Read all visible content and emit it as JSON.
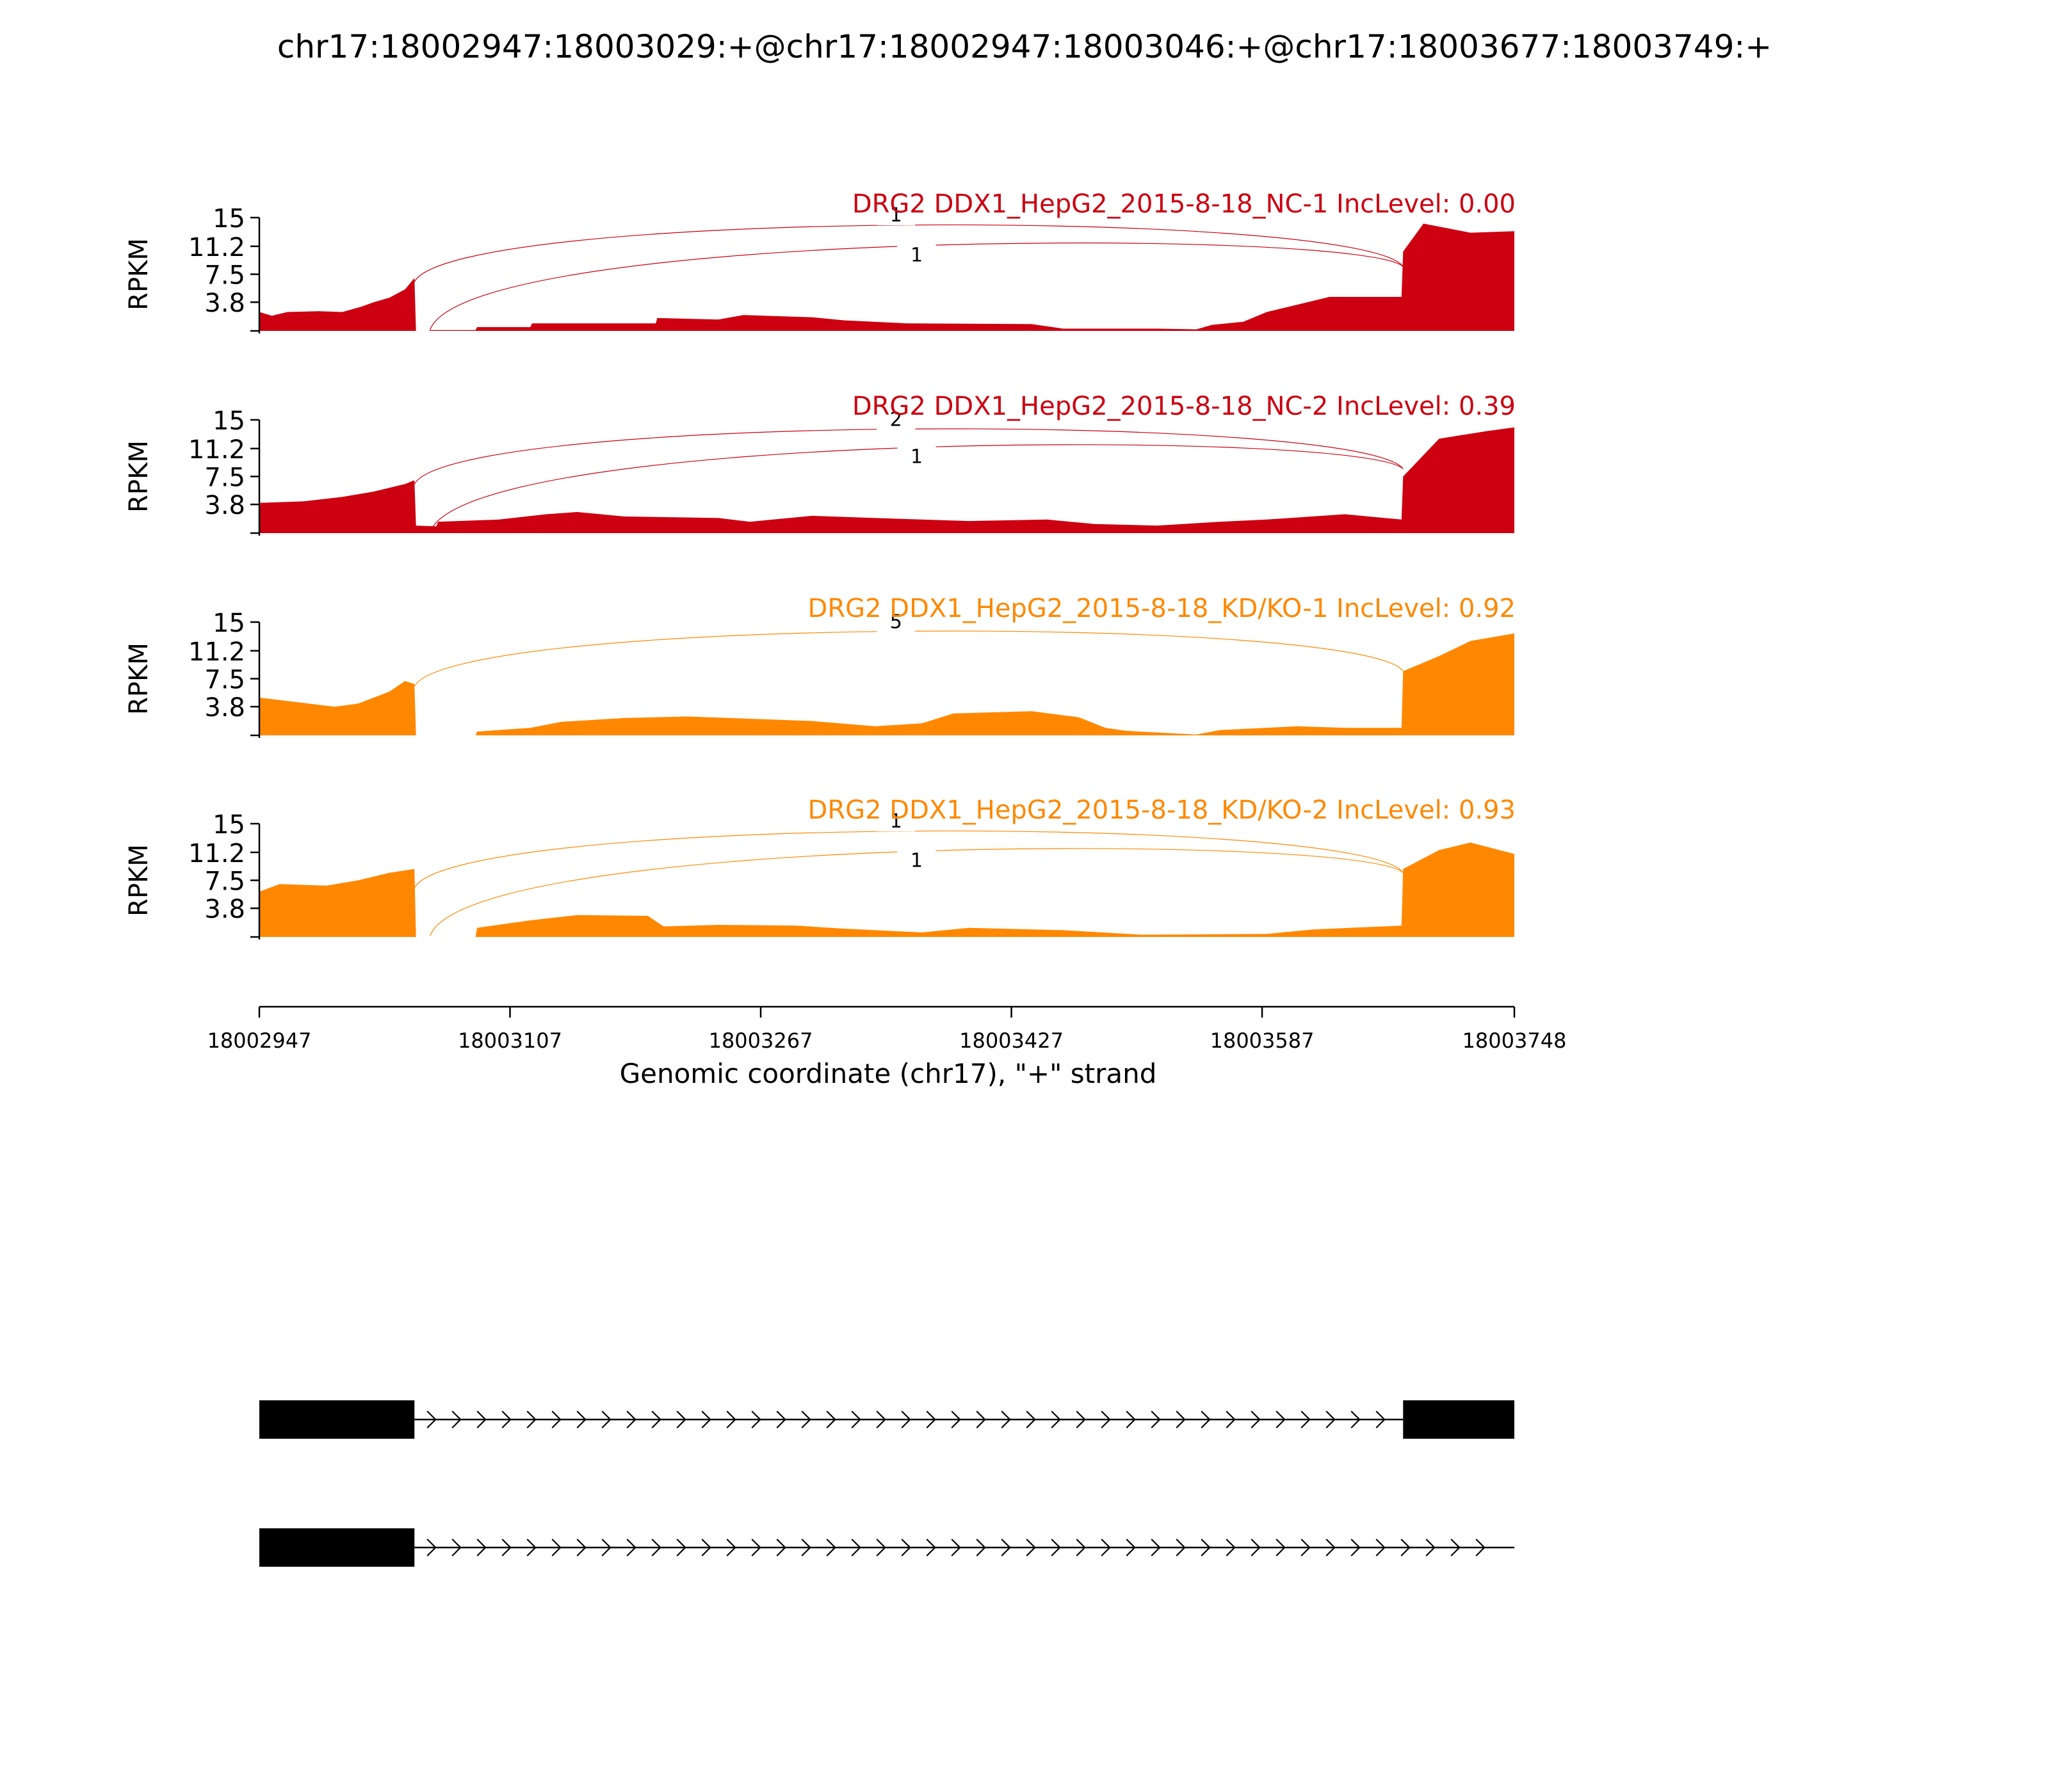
{
  "title": "chr17:18002947:18003029:+@chr17:18002947:18003046:+@chr17:18003677:18003749:+",
  "colors": {
    "nc": "#cc0011",
    "kd": "#ff8800",
    "axis": "#000000",
    "gene": "#000000"
  },
  "chart_data": {
    "type": "area",
    "xlabel": "Genomic coordinate (chr17), \"+\" strand",
    "ylabel": "RPKM",
    "xlim": [
      18002947,
      18003748
    ],
    "ylim": [
      0,
      15
    ],
    "xticks": [
      {
        "value": 18002947,
        "label": "18002947"
      },
      {
        "value": 18003107,
        "label": "18003107"
      },
      {
        "value": 18003267,
        "label": "18003267"
      },
      {
        "value": 18003427,
        "label": "18003427"
      },
      {
        "value": 18003587,
        "label": "18003587"
      },
      {
        "value": 18003748,
        "label": "18003748"
      }
    ],
    "yticks": [
      {
        "value": 3.8,
        "label": "3.8"
      },
      {
        "value": 7.5,
        "label": "7.5"
      },
      {
        "value": 11.2,
        "label": "11.2"
      },
      {
        "value": 15,
        "label": "15"
      }
    ],
    "series": [
      {
        "name": "DRG2 DDX1_HepG2_2015-8-18_NC-1 IncLevel: 0.00",
        "color_key": "nc",
        "coverage": [
          [
            18002947,
            2.5
          ],
          [
            18002955,
            2.0
          ],
          [
            18002965,
            2.5
          ],
          [
            18002985,
            2.6
          ],
          [
            18003000,
            2.5
          ],
          [
            18003012,
            3.2
          ],
          [
            18003020,
            3.8
          ],
          [
            18003030,
            4.4
          ],
          [
            18003040,
            5.5
          ],
          [
            18003046,
            7.0
          ],
          [
            18003047,
            0.0
          ],
          [
            18003055,
            0.0
          ],
          [
            18003056,
            0.1
          ],
          [
            18003085,
            0.1
          ],
          [
            18003086,
            0.5
          ],
          [
            18003120,
            0.5
          ],
          [
            18003121,
            1.0
          ],
          [
            18003200,
            1.0
          ],
          [
            18003201,
            1.7
          ],
          [
            18003240,
            1.5
          ],
          [
            18003256,
            2.1
          ],
          [
            18003300,
            1.8
          ],
          [
            18003320,
            1.4
          ],
          [
            18003360,
            1.0
          ],
          [
            18003440,
            0.9
          ],
          [
            18003460,
            0.3
          ],
          [
            18003520,
            0.3
          ],
          [
            18003545,
            0.2
          ],
          [
            18003555,
            0.8
          ],
          [
            18003575,
            1.2
          ],
          [
            18003590,
            2.5
          ],
          [
            18003610,
            3.5
          ],
          [
            18003630,
            4.5
          ],
          [
            18003676,
            4.5
          ],
          [
            18003677,
            10.5
          ],
          [
            18003690,
            14.2
          ],
          [
            18003720,
            13.0
          ],
          [
            18003748,
            13.2
          ]
        ],
        "junctions": [
          {
            "start": 18003046,
            "end": 18003677,
            "count": "1",
            "level": 12.8
          },
          {
            "start": 18003056,
            "end": 18003677,
            "count": "1",
            "level": 10.2
          }
        ]
      },
      {
        "name": "DRG2 DDX1_HepG2_2015-8-18_NC-2 IncLevel: 0.39",
        "color_key": "nc",
        "coverage": [
          [
            18002947,
            4.0
          ],
          [
            18002975,
            4.2
          ],
          [
            18003000,
            4.8
          ],
          [
            18003020,
            5.5
          ],
          [
            18003040,
            6.5
          ],
          [
            18003046,
            7.0
          ],
          [
            18003047,
            1.0
          ],
          [
            18003060,
            0.9
          ],
          [
            18003061,
            1.5
          ],
          [
            18003100,
            1.8
          ],
          [
            18003130,
            2.5
          ],
          [
            18003150,
            2.8
          ],
          [
            18003180,
            2.2
          ],
          [
            18003240,
            2.0
          ],
          [
            18003260,
            1.5
          ],
          [
            18003300,
            2.3
          ],
          [
            18003340,
            2.0
          ],
          [
            18003400,
            1.6
          ],
          [
            18003450,
            1.8
          ],
          [
            18003480,
            1.2
          ],
          [
            18003520,
            1.0
          ],
          [
            18003560,
            1.5
          ],
          [
            18003590,
            1.8
          ],
          [
            18003640,
            2.5
          ],
          [
            18003676,
            1.8
          ],
          [
            18003677,
            7.5
          ],
          [
            18003700,
            12.5
          ],
          [
            18003730,
            13.5
          ],
          [
            18003748,
            14.0
          ]
        ],
        "junctions": [
          {
            "start": 18003046,
            "end": 18003677,
            "count": "2",
            "level": 12.5
          },
          {
            "start": 18003056,
            "end": 18003677,
            "count": "1",
            "level": 10.3
          }
        ]
      },
      {
        "name": "DRG2 DDX1_HepG2_2015-8-18_KD/KO-1 IncLevel: 0.92",
        "color_key": "kd",
        "coverage": [
          [
            18002947,
            5.0
          ],
          [
            18002975,
            4.3
          ],
          [
            18002995,
            3.8
          ],
          [
            18003010,
            4.2
          ],
          [
            18003030,
            5.8
          ],
          [
            18003040,
            7.2
          ],
          [
            18003046,
            6.8
          ],
          [
            18003047,
            0.0
          ],
          [
            18003085,
            0.0
          ],
          [
            18003086,
            0.5
          ],
          [
            18003120,
            1.0
          ],
          [
            18003140,
            1.8
          ],
          [
            18003180,
            2.3
          ],
          [
            18003220,
            2.5
          ],
          [
            18003260,
            2.2
          ],
          [
            18003300,
            1.9
          ],
          [
            18003340,
            1.2
          ],
          [
            18003370,
            1.6
          ],
          [
            18003390,
            2.9
          ],
          [
            18003440,
            3.2
          ],
          [
            18003470,
            2.4
          ],
          [
            18003487,
            1.0
          ],
          [
            18003500,
            0.6
          ],
          [
            18003545,
            0.1
          ],
          [
            18003560,
            0.7
          ],
          [
            18003610,
            1.2
          ],
          [
            18003640,
            1.0
          ],
          [
            18003676,
            1.0
          ],
          [
            18003677,
            8.5
          ],
          [
            18003700,
            10.5
          ],
          [
            18003720,
            12.5
          ],
          [
            18003748,
            13.5
          ]
        ],
        "junctions": [
          {
            "start": 18003046,
            "end": 18003677,
            "count": "5",
            "level": 12.5
          }
        ]
      },
      {
        "name": "DRG2 DDX1_HepG2_2015-8-18_KD/KO-2 IncLevel: 0.93",
        "color_key": "kd",
        "coverage": [
          [
            18002947,
            6.0
          ],
          [
            18002960,
            7.0
          ],
          [
            18002990,
            6.8
          ],
          [
            18003010,
            7.5
          ],
          [
            18003030,
            8.5
          ],
          [
            18003046,
            9.0
          ],
          [
            18003047,
            0.0
          ],
          [
            18003085,
            0.0
          ],
          [
            18003086,
            1.2
          ],
          [
            18003120,
            2.2
          ],
          [
            18003150,
            2.9
          ],
          [
            18003195,
            2.8
          ],
          [
            18003205,
            1.4
          ],
          [
            18003240,
            1.6
          ],
          [
            18003290,
            1.5
          ],
          [
            18003320,
            1.1
          ],
          [
            18003370,
            0.6
          ],
          [
            18003400,
            1.2
          ],
          [
            18003460,
            0.9
          ],
          [
            18003510,
            0.3
          ],
          [
            18003590,
            0.4
          ],
          [
            18003620,
            1.0
          ],
          [
            18003676,
            1.5
          ],
          [
            18003677,
            9.0
          ],
          [
            18003700,
            11.5
          ],
          [
            18003720,
            12.5
          ],
          [
            18003748,
            11.0
          ]
        ],
        "junctions": [
          {
            "start": 18003046,
            "end": 18003677,
            "count": "1",
            "level": 12.8
          },
          {
            "start": 18003056,
            "end": 18003677,
            "count": "1",
            "level": 10.3
          }
        ]
      }
    ],
    "isoforms": [
      {
        "exons": [
          [
            18002947,
            18003046
          ],
          [
            18003677,
            18003748
          ]
        ],
        "introns": [
          [
            18003046,
            18003677
          ]
        ]
      },
      {
        "exons": [
          [
            18002947,
            18003046
          ]
        ],
        "introns": [
          [
            18003046,
            18003748
          ]
        ]
      }
    ]
  }
}
